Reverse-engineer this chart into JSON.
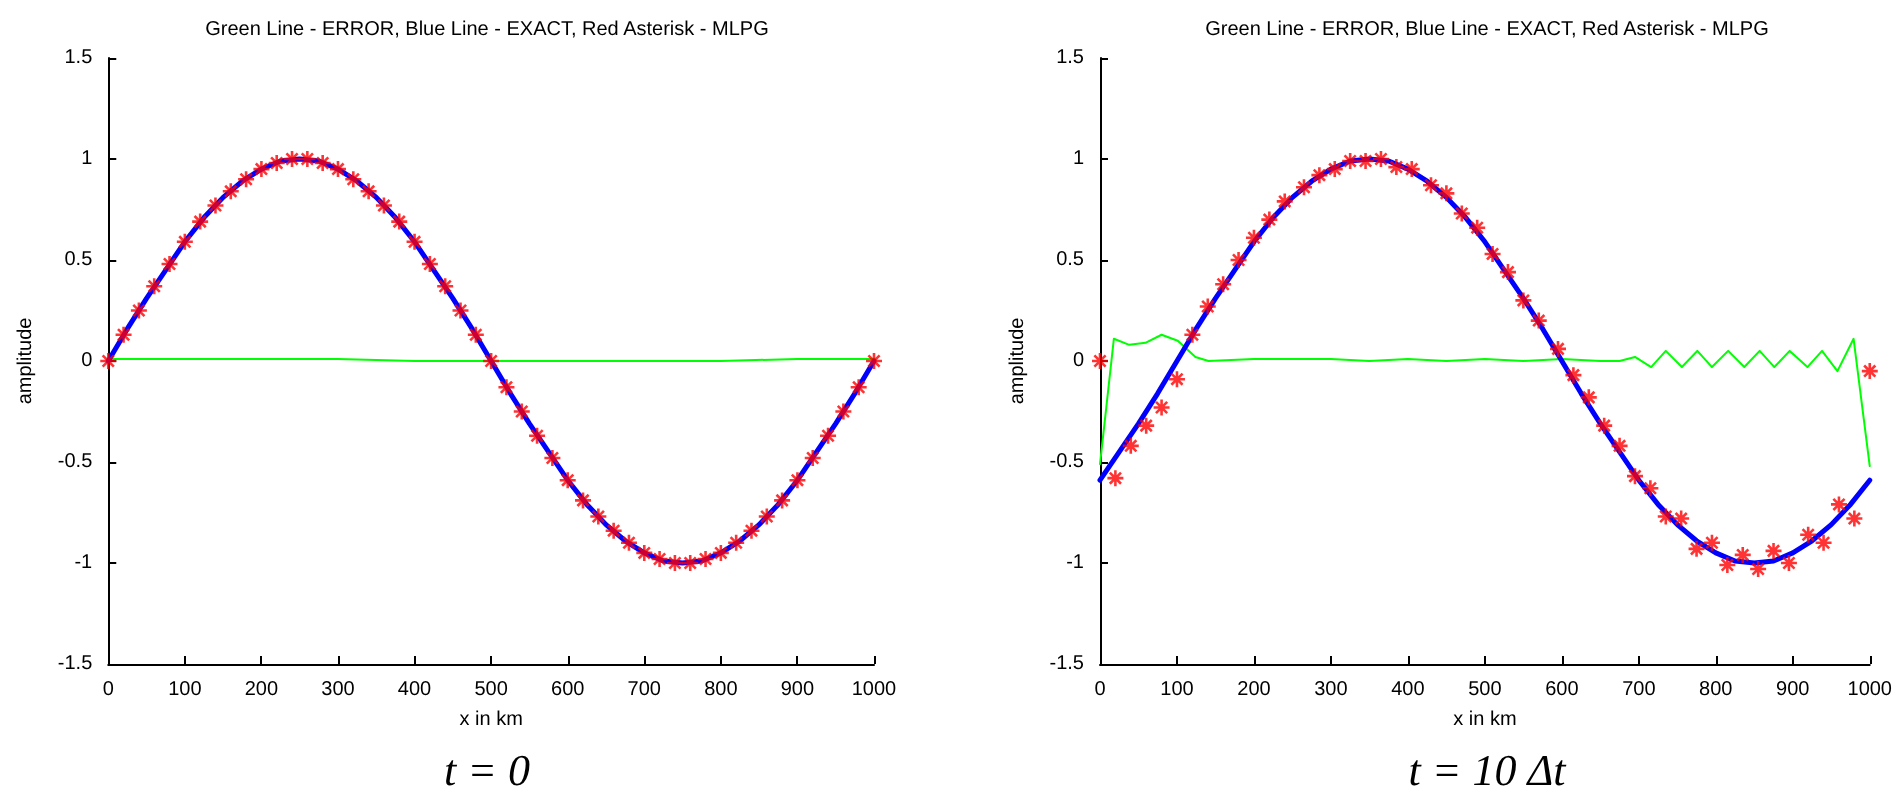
{
  "chart_data": [
    {
      "type": "line",
      "title": "Green Line - ERROR, Blue Line - EXACT, Red Asterisk - MLPG",
      "xlabel": "x in km",
      "ylabel": "amplitude",
      "annotations": [
        "t = 0"
      ],
      "xlim": [
        0,
        1000
      ],
      "ylim": [
        -1.5,
        1.5
      ],
      "xticks": [
        0,
        100,
        200,
        300,
        400,
        500,
        600,
        700,
        800,
        900,
        1000
      ],
      "yticks": [
        -1.5,
        -1,
        -0.5,
        0,
        0.5,
        1,
        1.5
      ],
      "series": [
        {
          "type": "line",
          "color": "#00ff00",
          "marker": "none",
          "line_style": "solid",
          "x": [
            0,
            100,
            200,
            300,
            400,
            500,
            600,
            700,
            800,
            900,
            1000
          ],
          "values": [
            0.01,
            0.01,
            0.01,
            0.01,
            0,
            0,
            0,
            0,
            0,
            0.01,
            0.01
          ]
        },
        {
          "type": "line",
          "color": "#0000ff",
          "marker": "none",
          "line_style": "solid",
          "x": [
            0,
            25,
            50,
            75,
            100,
            125,
            150,
            175,
            200,
            225,
            250,
            275,
            300,
            325,
            350,
            375,
            400,
            425,
            450,
            475,
            500,
            525,
            550,
            575,
            600,
            625,
            650,
            675,
            700,
            725,
            750,
            775,
            800,
            825,
            850,
            875,
            900,
            925,
            950,
            975,
            1000
          ],
          "values": [
            0,
            0.16,
            0.31,
            0.45,
            0.59,
            0.71,
            0.81,
            0.89,
            0.95,
            0.99,
            1,
            0.99,
            0.95,
            0.89,
            0.81,
            0.71,
            0.59,
            0.45,
            0.31,
            0.16,
            0,
            -0.16,
            -0.31,
            -0.45,
            -0.59,
            -0.71,
            -0.81,
            -0.89,
            -0.95,
            -0.99,
            -1,
            -0.99,
            -0.95,
            -0.89,
            -0.81,
            -0.71,
            -0.59,
            -0.45,
            -0.31,
            -0.16,
            0
          ]
        },
        {
          "type": "scatter",
          "color": "#ff0000",
          "marker": "cross",
          "x": [
            0,
            20,
            40,
            60,
            80,
            100,
            120,
            140,
            160,
            180,
            200,
            220,
            240,
            260,
            280,
            300,
            320,
            340,
            360,
            380,
            400,
            420,
            440,
            460,
            480,
            500,
            520,
            540,
            560,
            580,
            600,
            620,
            640,
            660,
            680,
            700,
            720,
            740,
            760,
            780,
            800,
            820,
            840,
            860,
            880,
            900,
            920,
            940,
            960,
            980,
            1000
          ],
          "values": [
            0,
            0.13,
            0.25,
            0.37,
            0.48,
            0.59,
            0.69,
            0.77,
            0.84,
            0.9,
            0.95,
            0.98,
            1,
            1,
            0.98,
            0.95,
            0.9,
            0.84,
            0.77,
            0.69,
            0.59,
            0.48,
            0.37,
            0.25,
            0.13,
            0,
            -0.13,
            -0.25,
            -0.37,
            -0.48,
            -0.59,
            -0.69,
            -0.77,
            -0.84,
            -0.9,
            -0.95,
            -0.98,
            -1,
            -1,
            -0.98,
            -0.95,
            -0.9,
            -0.84,
            -0.77,
            -0.69,
            -0.59,
            -0.48,
            -0.37,
            -0.25,
            -0.13,
            0
          ]
        }
      ]
    },
    {
      "type": "line",
      "title": "Green Line - ERROR, Blue Line - EXACT, Red Asterisk - MLPG",
      "xlabel": "x in km",
      "ylabel": "amplitude",
      "annotations": [
        "t = 10 Δt"
      ],
      "xlim": [
        0,
        1000
      ],
      "ylim": [
        -1.5,
        1.5
      ],
      "xticks": [
        0,
        100,
        200,
        300,
        400,
        500,
        600,
        700,
        800,
        900,
        1000
      ],
      "yticks": [
        -1.5,
        -1,
        -0.5,
        0,
        0.5,
        1,
        1.5
      ],
      "series": [
        {
          "type": "line",
          "color": "#00ff00",
          "marker": "none",
          "line_style": "solid",
          "x": [
            0,
            18,
            38,
            59,
            80,
            101,
            124,
            141,
            200,
            250,
            300,
            350,
            400,
            450,
            500,
            550,
            600,
            650,
            675,
            695,
            716,
            735,
            756,
            776,
            795,
            816,
            837,
            857,
            876,
            896,
            919,
            938,
            958,
            979,
            1000
          ],
          "values": [
            -0.51,
            0.11,
            0.08,
            0.09,
            0.13,
            0.1,
            0.02,
            0,
            0.01,
            0.01,
            0.01,
            0,
            0.01,
            0,
            0.01,
            0,
            0.01,
            0,
            0,
            0.02,
            -0.03,
            0.05,
            -0.03,
            0.05,
            -0.03,
            0.05,
            -0.03,
            0.05,
            -0.03,
            0.05,
            -0.03,
            0.05,
            -0.05,
            0.11,
            -0.52
          ]
        },
        {
          "type": "line",
          "color": "#0000ff",
          "marker": "none",
          "line_style": "solid",
          "x": [
            0,
            25,
            50,
            75,
            100,
            125,
            150,
            175,
            200,
            225,
            250,
            275,
            300,
            325,
            350,
            375,
            400,
            425,
            450,
            475,
            500,
            525,
            550,
            575,
            600,
            625,
            650,
            675,
            700,
            725,
            750,
            775,
            800,
            825,
            850,
            875,
            900,
            925,
            950,
            975,
            1000
          ],
          "values": [
            -0.59,
            -0.45,
            -0.31,
            -0.16,
            0,
            0.16,
            0.31,
            0.45,
            0.59,
            0.71,
            0.81,
            0.89,
            0.95,
            0.99,
            1,
            0.99,
            0.95,
            0.89,
            0.81,
            0.71,
            0.59,
            0.45,
            0.31,
            0.16,
            0,
            -0.16,
            -0.31,
            -0.45,
            -0.59,
            -0.71,
            -0.81,
            -0.89,
            -0.95,
            -0.99,
            -1,
            -0.99,
            -0.95,
            -0.89,
            -0.81,
            -0.71,
            -0.59
          ]
        },
        {
          "type": "scatter",
          "color": "#ff0000",
          "marker": "cross",
          "x": [
            0,
            20,
            40,
            60,
            80,
            100,
            120,
            140,
            160,
            180,
            200,
            220,
            240,
            265,
            285,
            305,
            325,
            345,
            365,
            385,
            405,
            430,
            450,
            470,
            490,
            510,
            530,
            550,
            570,
            595,
            615,
            635,
            655,
            675,
            695,
            715,
            735,
            755,
            775,
            795,
            815,
            835,
            855,
            875,
            895,
            920,
            940,
            960,
            980,
            1000
          ],
          "values": [
            0,
            -0.58,
            -0.42,
            -0.32,
            -0.23,
            -0.09,
            0.13,
            0.27,
            0.38,
            0.5,
            0.61,
            0.7,
            0.79,
            0.86,
            0.92,
            0.95,
            0.99,
            0.99,
            1,
            0.96,
            0.95,
            0.87,
            0.83,
            0.73,
            0.66,
            0.53,
            0.44,
            0.3,
            0.2,
            0.06,
            -0.07,
            -0.18,
            -0.32,
            -0.42,
            -0.57,
            -0.63,
            -0.77,
            -0.78,
            -0.93,
            -0.9,
            -1.01,
            -0.96,
            -1.03,
            -0.94,
            -1,
            -0.86,
            -0.9,
            -0.71,
            -0.78,
            -0.05
          ]
        }
      ]
    }
  ]
}
